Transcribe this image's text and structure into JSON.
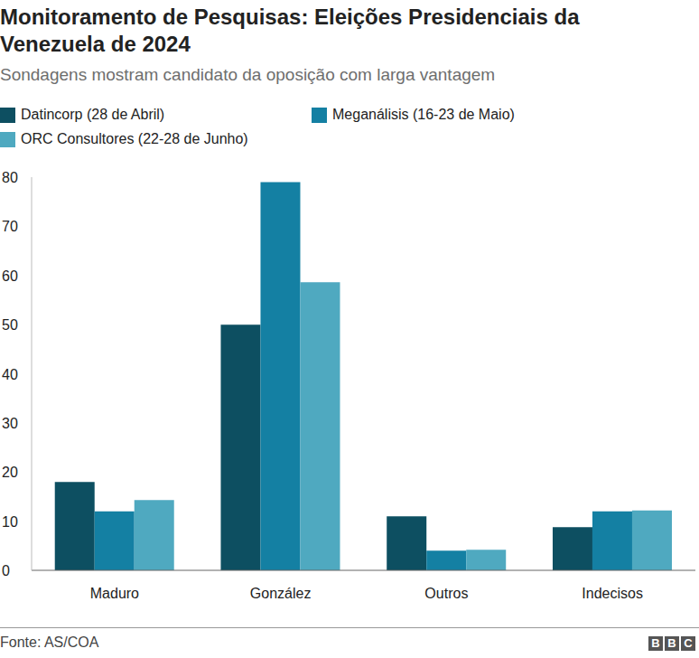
{
  "chart_data": {
    "type": "bar",
    "title": "Monitoramento de Pesquisas: Eleições Presidenciais da Venezuela de 2024",
    "subtitle": "Sondagens mostram candidato da oposição com larga vantagem",
    "categories": [
      "Maduro",
      "González",
      "Outros",
      "Indecisos"
    ],
    "series": [
      {
        "name": "Datincorp (28 de Abril)",
        "color": "#0d4f61",
        "values": [
          18,
          50,
          11,
          8.8
        ]
      },
      {
        "name": "Meganálisis (16-23 de Maio)",
        "color": "#1480a3",
        "values": [
          12,
          79,
          4,
          12
        ]
      },
      {
        "name": "ORC Consultores (22-28 de Junho)",
        "color": "#4fa9c0",
        "values": [
          14.3,
          58.6,
          4.2,
          12.2
        ]
      }
    ],
    "ylim": [
      0,
      80
    ],
    "yticks": [
      0,
      10,
      20,
      30,
      40,
      50,
      60,
      70,
      80
    ],
    "grid": false,
    "source": "Fonte: AS/COA",
    "logo": "BBC"
  }
}
